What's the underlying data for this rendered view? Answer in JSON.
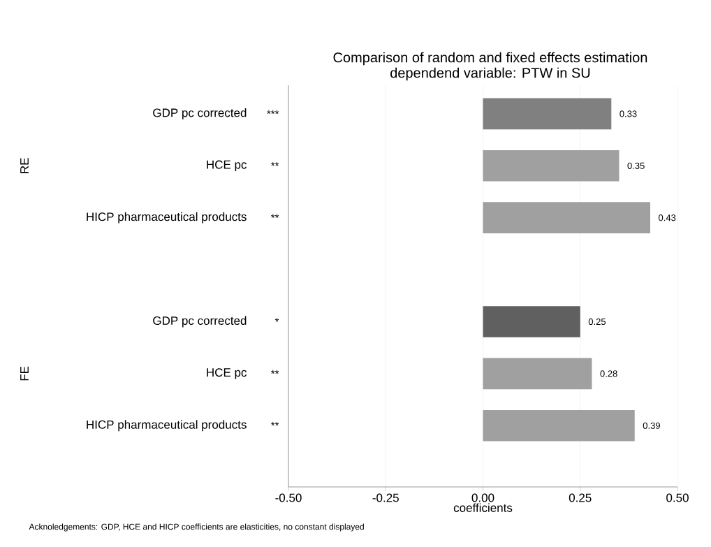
{
  "chart_data": {
    "type": "bar",
    "orientation": "horizontal",
    "title": "Comparison of random and  fixed effects estimation",
    "subtitle": "dependend variable: PTW in SU",
    "xlabel": "coefficients",
    "categories": [
      "GDP pc corrected",
      "HCE pc",
      "HICP pharmaceutical products",
      null,
      "GDP pc corrected",
      "HCE pc",
      "HICP pharmaceutical products"
    ],
    "values": [
      0.33,
      0.35,
      0.43,
      null,
      0.25,
      0.28,
      0.39
    ],
    "colors": [
      "#808080",
      "#a0a0a0",
      "#a0a0a0",
      null,
      "#606060",
      "#a0a0a0",
      "#a0a0a0"
    ],
    "data_labels": true,
    "xlim": [
      -0.5,
      0.5
    ],
    "xticks": [
      {
        "value": -0.5,
        "label": "-0.50"
      },
      {
        "value": -0.25,
        "label": "-0.25"
      },
      {
        "value": 0,
        "label": "0.00"
      },
      {
        "value": 0.25,
        "label": "0.25"
      },
      {
        "value": 0.5,
        "label": "0.50"
      }
    ],
    "grid": "x",
    "annotations": [
      "***",
      "**",
      "**",
      null,
      "*",
      "**",
      "**",
      "RE",
      "FE",
      "Acknoledgements: GDP, HCE and HICP coefficients are elasticities, no constant displayed"
    ]
  }
}
